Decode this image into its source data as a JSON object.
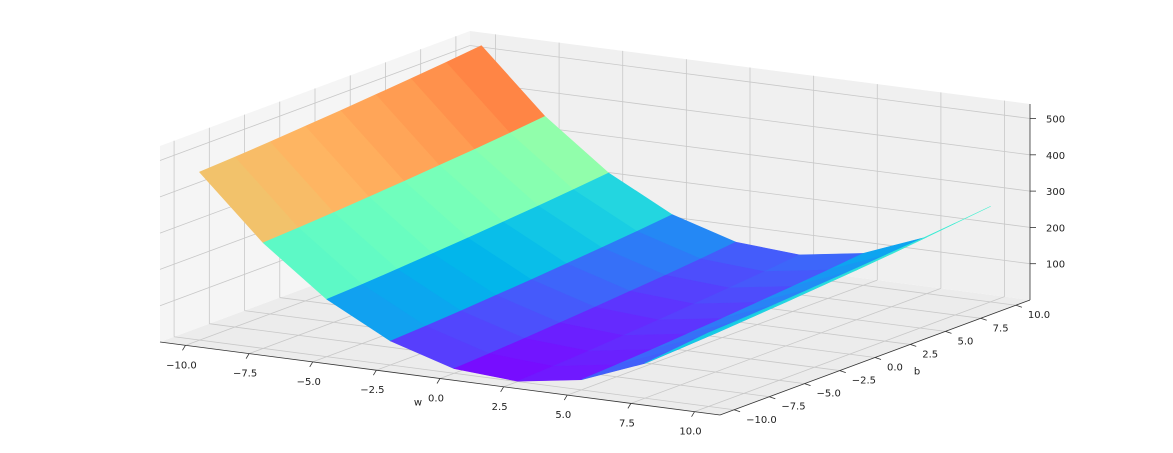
{
  "chart_data": {
    "type": "surface",
    "xlabel": "w",
    "ylabel": "b",
    "x": [
      -10,
      -7.5,
      -5,
      -2.5,
      0,
      2.5,
      5,
      7.5,
      10
    ],
    "y": [
      -10,
      -7.5,
      -5,
      -2.5,
      0,
      2.5,
      5,
      7.5,
      10
    ],
    "z": [
      [
        463,
        291,
        158,
        66,
        13,
        1,
        28,
        96,
        203
      ],
      [
        468,
        296,
        163,
        71,
        18,
        6,
        33,
        101,
        208
      ],
      [
        474,
        302,
        169,
        77,
        24,
        12,
        39,
        107,
        214
      ],
      [
        481,
        309,
        176,
        84,
        31,
        19,
        46,
        114,
        221
      ],
      [
        488,
        316,
        183,
        91,
        38,
        26,
        53,
        121,
        228
      ],
      [
        496,
        324,
        191,
        99,
        46,
        34,
        61,
        129,
        236
      ],
      [
        504,
        332,
        199,
        107,
        54,
        42,
        69,
        137,
        244
      ],
      [
        513,
        341,
        208,
        116,
        63,
        51,
        78,
        146,
        253
      ],
      [
        523,
        351,
        218,
        126,
        73,
        61,
        88,
        156,
        263
      ]
    ],
    "colormap": "rainbow",
    "xlim": [
      -11,
      11
    ],
    "ylim": [
      -11,
      11
    ],
    "zlim": [
      0,
      540
    ],
    "xticks": [
      {
        "value": -10,
        "label": "−10.0"
      },
      {
        "value": -7.5,
        "label": "−7.5"
      },
      {
        "value": -5,
        "label": "−5.0"
      },
      {
        "value": -2.5,
        "label": "−2.5"
      },
      {
        "value": 0,
        "label": "0.0"
      },
      2.5,
      {
        "value": 5,
        "label": "5.0"
      },
      7.5,
      {
        "value": 10,
        "label": "10.0"
      }
    ],
    "yticks": [
      {
        "value": -10,
        "label": "−10.0"
      },
      {
        "value": -7.5,
        "label": "−7.5"
      },
      {
        "value": -5,
        "label": "−5.0"
      },
      {
        "value": -2.5,
        "label": "−2.5"
      },
      {
        "value": 0,
        "label": "0.0"
      },
      2.5,
      {
        "value": 5,
        "label": "5.0"
      },
      7.5,
      {
        "value": 10,
        "label": "10.0"
      }
    ],
    "zticks": [
      100,
      200,
      300,
      400,
      500
    ],
    "grid": true
  }
}
